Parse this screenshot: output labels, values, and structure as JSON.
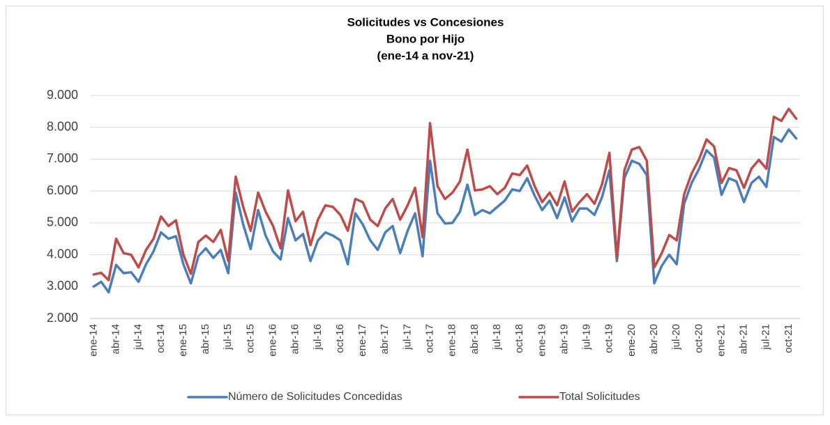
{
  "chart_data": {
    "type": "line",
    "title": [
      "Solicitudes vs Concesiones",
      "Bono por Hijo",
      "(ene-14 a nov-21)"
    ],
    "categories": [
      "ene-14",
      null,
      null,
      "abr-14",
      null,
      null,
      "jul-14",
      null,
      null,
      "oct-14",
      null,
      null,
      "ene-15",
      null,
      null,
      "abr-15",
      null,
      null,
      "jul-15",
      null,
      null,
      "oct-15",
      null,
      null,
      "ene-16",
      null,
      null,
      "abr-16",
      null,
      null,
      "jul-16",
      null,
      null,
      "oct-16",
      null,
      null,
      "ene-17",
      null,
      null,
      "abr-17",
      null,
      null,
      "jul-17",
      null,
      null,
      "oct-17",
      null,
      null,
      "ene-18",
      null,
      null,
      "abr-18",
      null,
      null,
      "jul-18",
      null,
      null,
      "oct-18",
      null,
      null,
      "ene-19",
      null,
      null,
      "abr-19",
      null,
      null,
      "jul-19",
      null,
      null,
      "oct-19",
      null,
      null,
      "ene-20",
      null,
      null,
      "abr-20",
      null,
      null,
      "jul-20",
      null,
      null,
      "oct-20",
      null,
      null,
      "ene-21",
      null,
      null,
      "abr-21",
      null,
      null,
      "jul-21",
      null,
      null,
      "oct-21",
      null
    ],
    "series": [
      {
        "name": "Número de Solicitudes Concedidas",
        "color": "#4a7ebb",
        "values": [
          3000,
          3150,
          2820,
          3680,
          3420,
          3450,
          3150,
          3700,
          4100,
          4700,
          4500,
          4580,
          3700,
          3100,
          3950,
          4200,
          3900,
          4150,
          3420,
          5950,
          4950,
          4180,
          5400,
          4600,
          4100,
          3850,
          5150,
          4450,
          4650,
          3800,
          4450,
          4700,
          4600,
          4450,
          3700,
          5300,
          4950,
          4450,
          4150,
          4700,
          4900,
          4050,
          4750,
          5300,
          3950,
          6950,
          5300,
          4980,
          5000,
          5350,
          6200,
          5250,
          5400,
          5300,
          5500,
          5700,
          6050,
          6000,
          6400,
          5850,
          5400,
          5700,
          5150,
          5800,
          5050,
          5450,
          5450,
          5250,
          5800,
          6650,
          3800,
          6400,
          6950,
          6850,
          6500,
          3100,
          3650,
          4000,
          3700,
          5600,
          6250,
          6700,
          7280,
          7050,
          5880,
          6400,
          6300,
          5650,
          6250,
          6450,
          6130,
          7700,
          7550,
          7930,
          7650
        ]
      },
      {
        "name": "Total Solicitudes",
        "color": "#be4b48",
        "values": [
          3380,
          3430,
          3200,
          4500,
          4050,
          4000,
          3600,
          4150,
          4500,
          5200,
          4900,
          5080,
          4000,
          3400,
          4400,
          4600,
          4400,
          4780,
          3800,
          6450,
          5500,
          4750,
          5950,
          5350,
          4900,
          4200,
          6020,
          5050,
          5350,
          4300,
          5100,
          5550,
          5500,
          5250,
          4750,
          5750,
          5650,
          5100,
          4900,
          5450,
          5750,
          5100,
          5550,
          6100,
          4550,
          8130,
          6150,
          5750,
          5950,
          6300,
          7300,
          6020,
          6050,
          6150,
          5900,
          6100,
          6550,
          6500,
          6800,
          6150,
          5650,
          5950,
          5550,
          6300,
          5350,
          5650,
          5900,
          5600,
          6200,
          7200,
          3900,
          6650,
          7300,
          7380,
          6950,
          3600,
          4050,
          4620,
          4450,
          5900,
          6550,
          7000,
          7620,
          7400,
          6250,
          6720,
          6650,
          6100,
          6700,
          6980,
          6700,
          8330,
          8200,
          8580,
          8270
        ]
      }
    ],
    "ylim": [
      2000,
      9000
    ],
    "yticks": [
      {
        "value": 2000,
        "label": "2.000"
      },
      {
        "value": 3000,
        "label": "3.000"
      },
      {
        "value": 4000,
        "label": "4.000"
      },
      {
        "value": 5000,
        "label": "5.000"
      },
      {
        "value": 6000,
        "label": "6.000"
      },
      {
        "value": 7000,
        "label": "7.000"
      },
      {
        "value": 8000,
        "label": "8.000"
      },
      {
        "value": 9000,
        "label": "9.000"
      }
    ],
    "grid": true,
    "legend": "bottom"
  }
}
